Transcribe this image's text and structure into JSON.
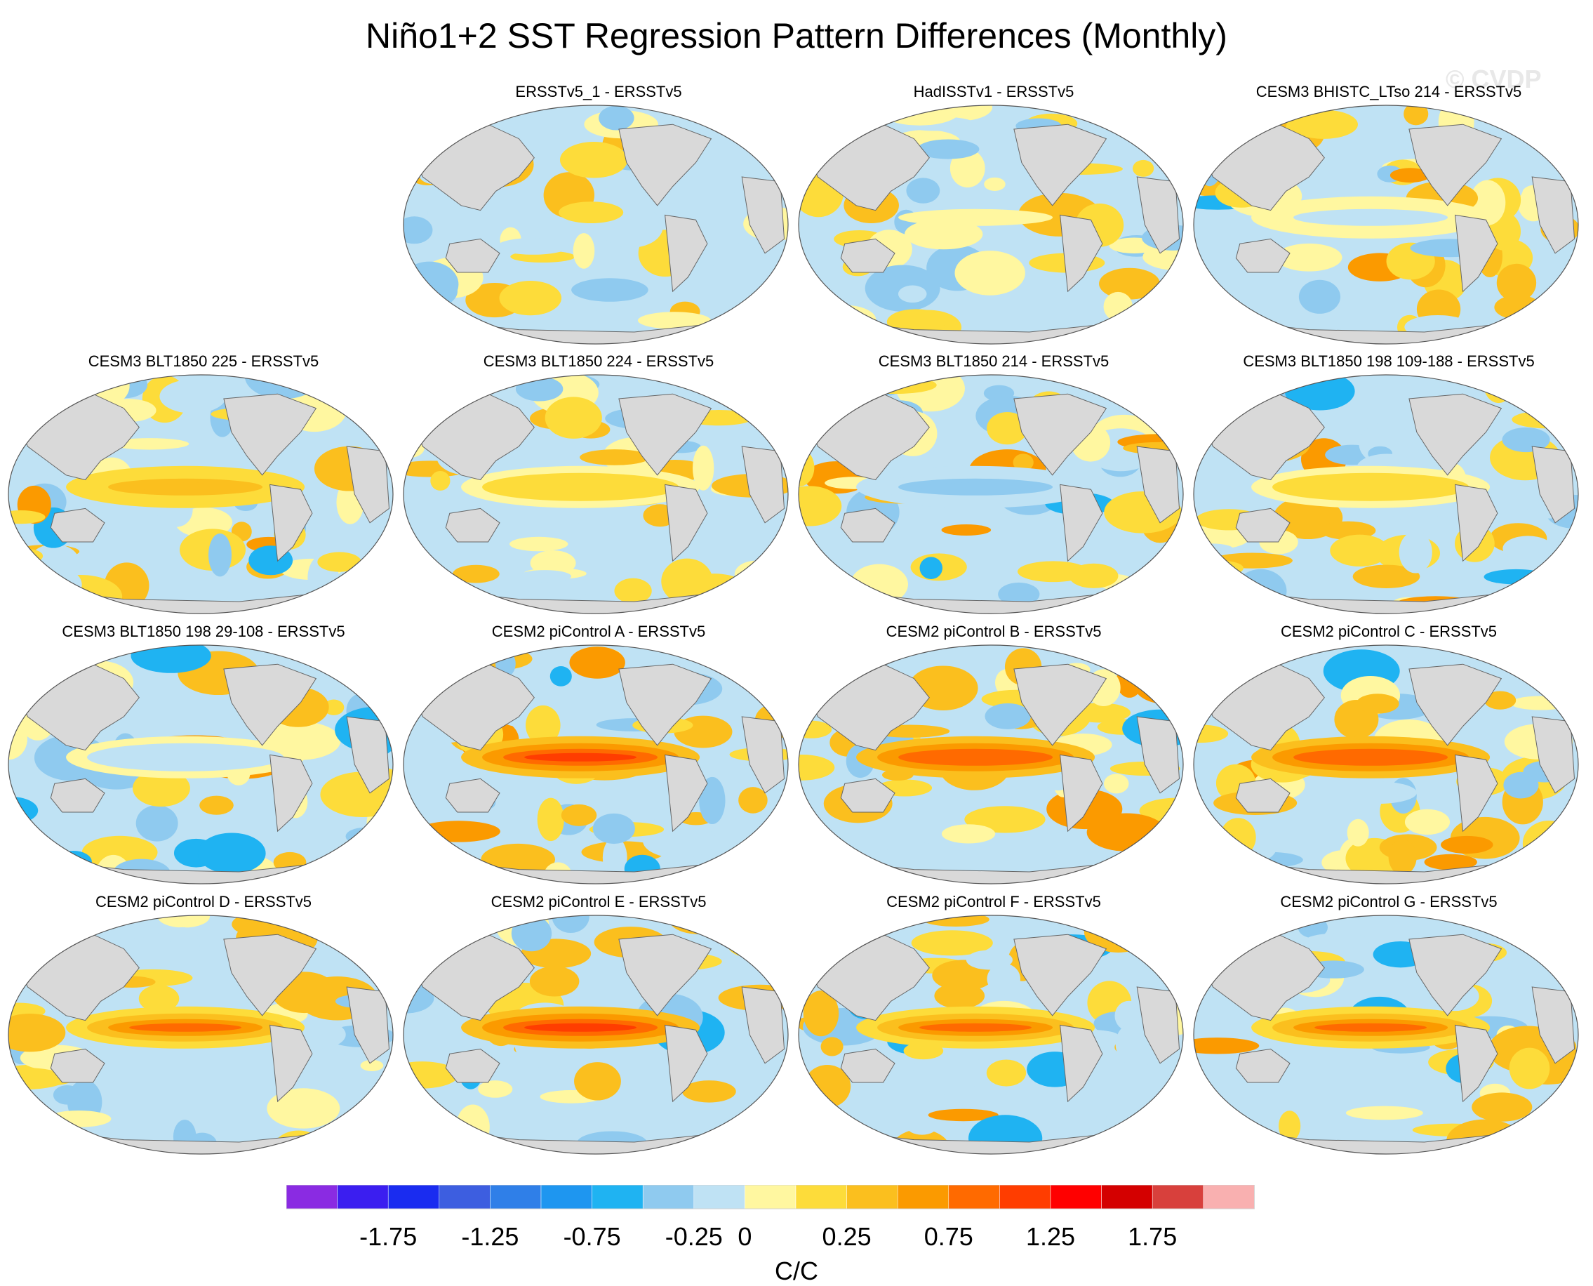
{
  "title": "Niño1+2 SST Regression Pattern Differences (Monthly)",
  "watermark": "© CVDP",
  "chart_data": {
    "type": "heatmap",
    "projection": "global map panels (ocean SST regression difference fields, land masked gray)",
    "colorbar": {
      "label": "C/C",
      "tick_labels": [
        "-1.75",
        "-1.25",
        "-0.75",
        "-0.25",
        "0",
        "0.25",
        "0.75",
        "1.25",
        "1.75"
      ],
      "colors": [
        "#8a2be2",
        "#3b1ef0",
        "#1a2cf0",
        "#3d5ee0",
        "#2f7fe8",
        "#1e96f0",
        "#1fb3f2",
        "#8fcaef",
        "#bfe2f4",
        "#fff7a0",
        "#fddc3a",
        "#fbbf1e",
        "#fb9a00",
        "#ff6a00",
        "#ff3d00",
        "#ff0000",
        "#d40000",
        "#d8403c",
        "#f9b0b0"
      ],
      "range": [
        -2.25,
        2.25
      ],
      "legend_position": "bottom"
    },
    "panels": [
      {
        "title": "ERSSTv5_1 - ERSSTv5",
        "intensity": 0.45,
        "enso": 0.0,
        "seed": 3
      },
      {
        "title": "HadISSTv1 - ERSSTv5",
        "intensity": 0.5,
        "enso": 0.05,
        "seed": 7
      },
      {
        "title": "CESM3 BHISTC_LTso 214 - ERSSTv5",
        "intensity": 0.6,
        "enso": -0.15,
        "seed": 11
      },
      {
        "title": "CESM3 BLT1850 225 - ERSSTv5",
        "intensity": 0.6,
        "enso": 0.35,
        "seed": 13
      },
      {
        "title": "CESM3 BLT1850 224 - ERSSTv5",
        "intensity": 0.55,
        "enso": 0.2,
        "seed": 17
      },
      {
        "title": "CESM3 BLT1850 214 - ERSSTv5",
        "intensity": 0.65,
        "enso": -0.35,
        "seed": 19
      },
      {
        "title": "CESM3 BLT1850 198 109-188 - ERSSTv5",
        "intensity": 0.6,
        "enso": 0.2,
        "seed": 23
      },
      {
        "title": "CESM3 BLT1850 198 29-108 - ERSSTv5",
        "intensity": 0.65,
        "enso": -0.25,
        "seed": 29
      },
      {
        "title": "CESM2 piControl A - ERSSTv5",
        "intensity": 0.6,
        "enso": 1.0,
        "seed": 31
      },
      {
        "title": "CESM2 piControl B - ERSSTv5",
        "intensity": 0.6,
        "enso": 0.85,
        "seed": 37
      },
      {
        "title": "CESM2 piControl C - ERSSTv5",
        "intensity": 0.6,
        "enso": 0.85,
        "seed": 41
      },
      {
        "title": "CESM2 piControl D - ERSSTv5",
        "intensity": 0.6,
        "enso": 0.8,
        "seed": 43
      },
      {
        "title": "CESM2 piControl E - ERSSTv5",
        "intensity": 0.6,
        "enso": 0.9,
        "seed": 47
      },
      {
        "title": "CESM2 piControl F - ERSSTv5",
        "intensity": 0.6,
        "enso": 0.8,
        "seed": 53
      },
      {
        "title": "CESM2 piControl G - ERSSTv5",
        "intensity": 0.6,
        "enso": 0.75,
        "seed": 59
      }
    ]
  }
}
